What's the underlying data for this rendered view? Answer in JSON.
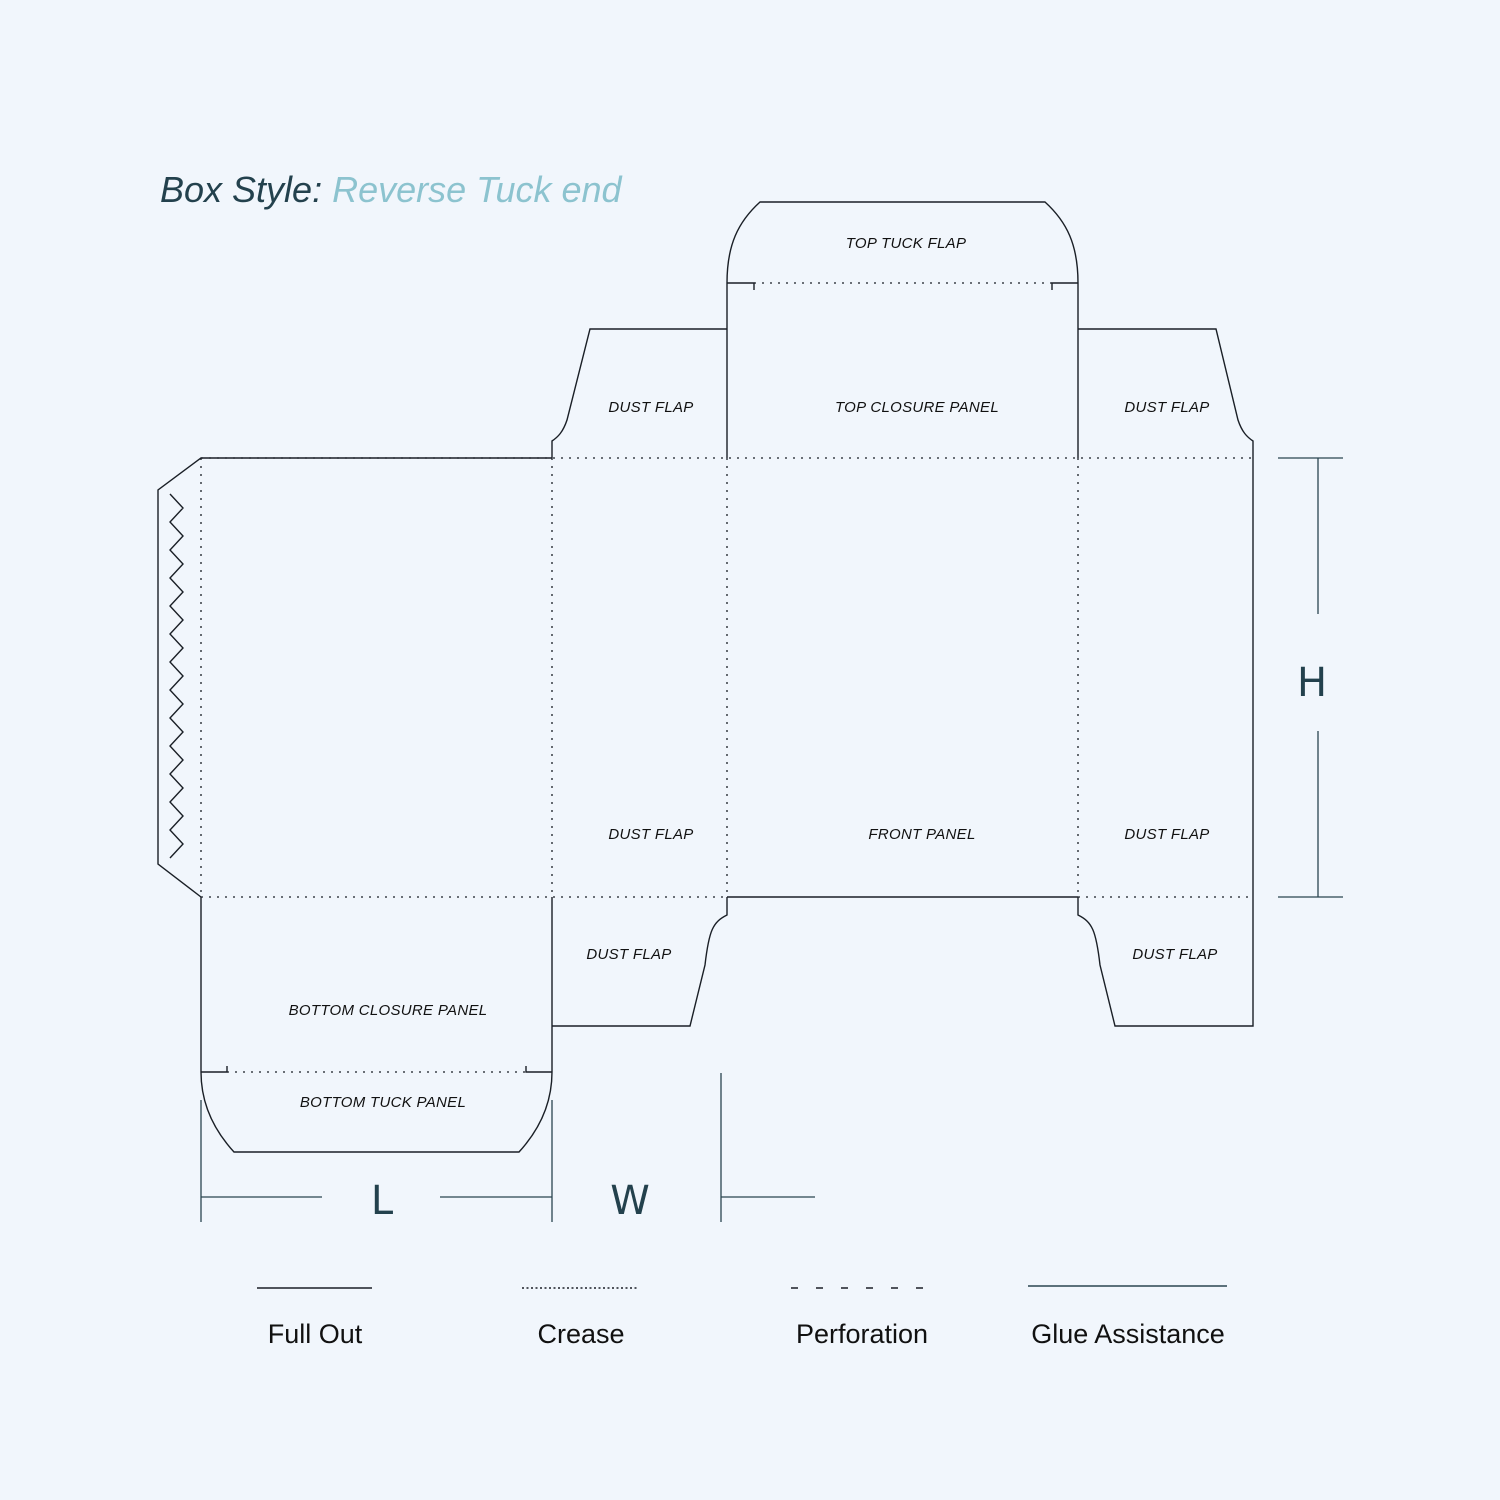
{
  "title": {
    "prefix": "Box Style:",
    "style_name": "Reverse Tuck end"
  },
  "panels": {
    "top_tuck_flap": "TOP TUCK FLAP",
    "top_closure_panel": "TOP CLOSURE PANEL",
    "dust_flap": "DUST FLAP",
    "front_panel": "FRONT PANEL",
    "bottom_closure_panel": "BOTTOM CLOSURE PANEL",
    "bottom_tuck_panel": "BOTTOM TUCK PANEL"
  },
  "dimensions": {
    "length": "L",
    "width": "W",
    "height": "H"
  },
  "legend": [
    {
      "key": "full-out",
      "label": "Full Out"
    },
    {
      "key": "crease",
      "label": "Crease"
    },
    {
      "key": "perforation",
      "label": "Perforation"
    },
    {
      "key": "glue-assistance",
      "label": "Glue Assistance"
    }
  ],
  "colors": {
    "background": "#f1f6fc",
    "line": "#1a1f26",
    "accent": "#8cc3cf",
    "dark_text": "#23414d"
  }
}
